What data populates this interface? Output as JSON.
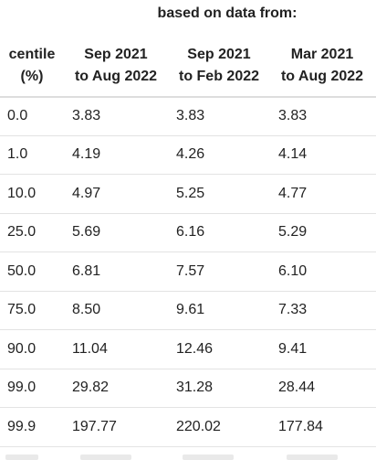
{
  "table": {
    "group_header": "based on data from:",
    "columns": [
      [
        "centile",
        "(%)"
      ],
      [
        "Sep 2021",
        "to Aug 2022"
      ],
      [
        "Sep 2021",
        "to Feb 2022"
      ],
      [
        "Mar 2021",
        "to Aug 2022"
      ]
    ],
    "rows": [
      [
        "0.0",
        "3.83",
        "3.83",
        "3.83"
      ],
      [
        "1.0",
        "4.19",
        "4.26",
        "4.14"
      ],
      [
        "10.0",
        "4.97",
        "5.25",
        "4.77"
      ],
      [
        "25.0",
        "5.69",
        "6.16",
        "5.29"
      ],
      [
        "50.0",
        "6.81",
        "7.57",
        "6.10"
      ],
      [
        "75.0",
        "8.50",
        "9.61",
        "7.33"
      ],
      [
        "90.0",
        "11.04",
        "12.46",
        "9.41"
      ],
      [
        "99.0",
        "29.82",
        "31.28",
        "28.44"
      ],
      [
        "99.9",
        "197.77",
        "220.02",
        "177.84"
      ]
    ]
  }
}
